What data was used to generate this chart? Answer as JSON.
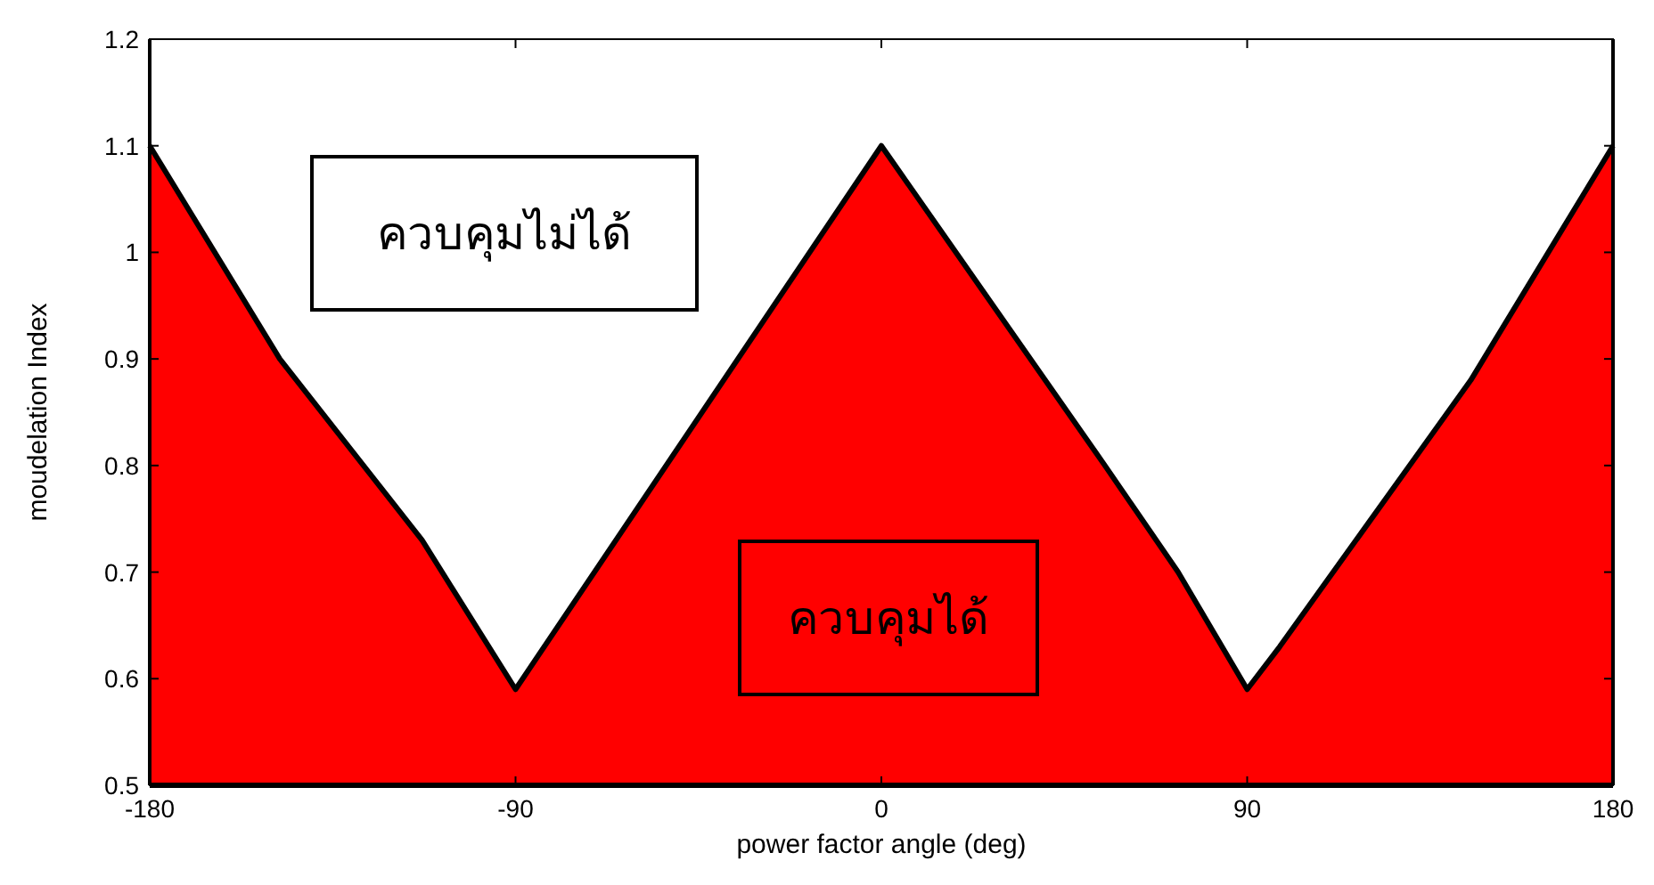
{
  "chart_data": {
    "type": "area",
    "xlabel": "power factor angle (deg)",
    "ylabel": "moudelation Index",
    "x": [
      -180,
      -148,
      -113,
      -90,
      0,
      55,
      73,
      90,
      98,
      145,
      180
    ],
    "values": [
      1.1,
      0.9,
      0.73,
      0.59,
      1.1,
      0.8,
      0.7,
      0.59,
      0.63,
      0.88,
      1.1
    ],
    "color": "#ff0000",
    "xlim": [
      -180,
      180
    ],
    "ylim": [
      0.5,
      1.2
    ],
    "xticks": [
      -180,
      -90,
      0,
      90,
      180
    ],
    "yticks": [
      0.5,
      0.6,
      0.7,
      0.8,
      0.9,
      1,
      1.1,
      1.2
    ],
    "annotations": [
      "ควบคุมไม่ได้",
      "ควบคุมได้"
    ]
  }
}
